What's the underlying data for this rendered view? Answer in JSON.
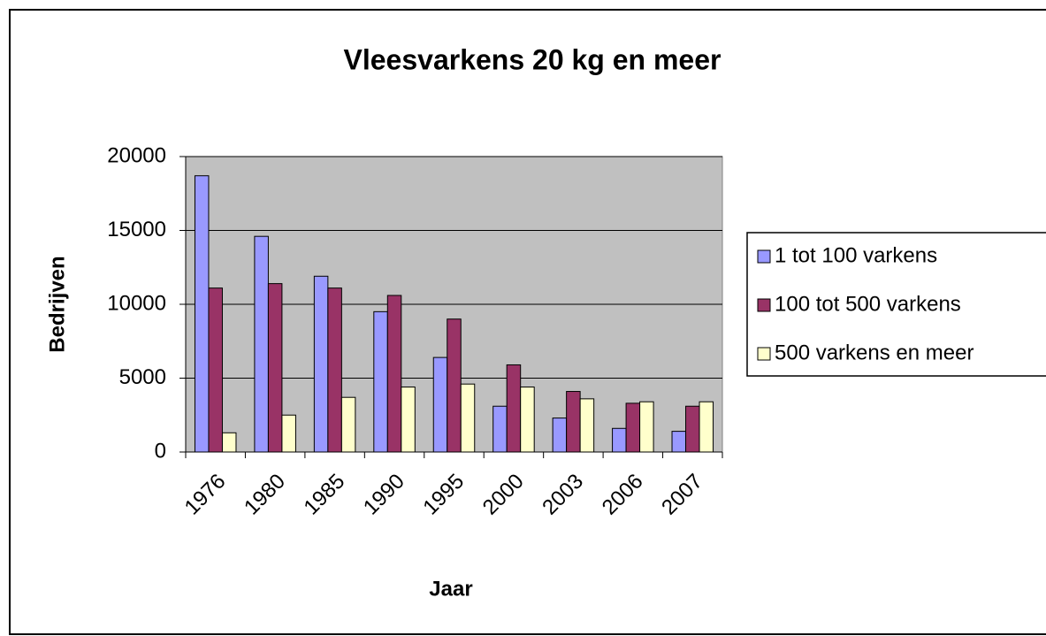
{
  "chart_data": {
    "type": "bar",
    "title": "Vleesvarkens 20 kg en meer",
    "xlabel": "Jaar",
    "ylabel": "Bedrijven",
    "categories": [
      "1976",
      "1980",
      "1985",
      "1990",
      "1995",
      "2000",
      "2003",
      "2006",
      "2007"
    ],
    "series": [
      {
        "name": "1 tot 100 varkens",
        "color": "#9999ff",
        "values": [
          18700,
          14600,
          11900,
          9500,
          6400,
          3100,
          2300,
          1600,
          1400
        ]
      },
      {
        "name": "100 tot 500 varkens",
        "color": "#993366",
        "values": [
          11100,
          11400,
          11100,
          10600,
          9000,
          5900,
          4100,
          3300,
          3100
        ]
      },
      {
        "name": "500 varkens en meer",
        "color": "#ffffcc",
        "values": [
          1300,
          2500,
          3700,
          4400,
          4600,
          4400,
          3600,
          3400,
          3400
        ]
      }
    ],
    "ylim": [
      0,
      20000
    ],
    "yticks": [
      0,
      5000,
      10000,
      15000,
      20000
    ],
    "grid": true,
    "legend": "right"
  }
}
